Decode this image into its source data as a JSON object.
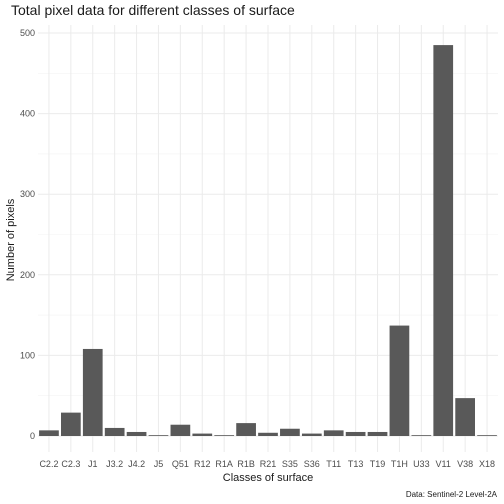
{
  "chart_data": {
    "type": "bar",
    "title": "Total pixel data for different classes of surface",
    "xlabel": "Classes of surface",
    "ylabel": "Number of pixels",
    "caption": "Data: Sentinel-2 Level-2A",
    "categories": [
      "C2.2",
      "C2.3",
      "J1",
      "J3.2",
      "J4.2",
      "J5",
      "Q51",
      "R12",
      "R1A",
      "R1B",
      "R21",
      "S35",
      "S36",
      "T11",
      "T13",
      "T19",
      "T1H",
      "U33",
      "V11",
      "V38",
      "X18"
    ],
    "values": [
      7,
      29,
      108,
      10,
      5,
      1,
      14,
      3,
      1,
      16,
      4,
      9,
      3,
      7,
      5,
      5,
      137,
      1,
      485,
      47,
      1
    ],
    "ylim": [
      0,
      500
    ],
    "yticks": [
      0,
      100,
      200,
      300,
      400,
      500
    ],
    "grid": true,
    "bar_color": "#595959",
    "theme": "minimal"
  }
}
